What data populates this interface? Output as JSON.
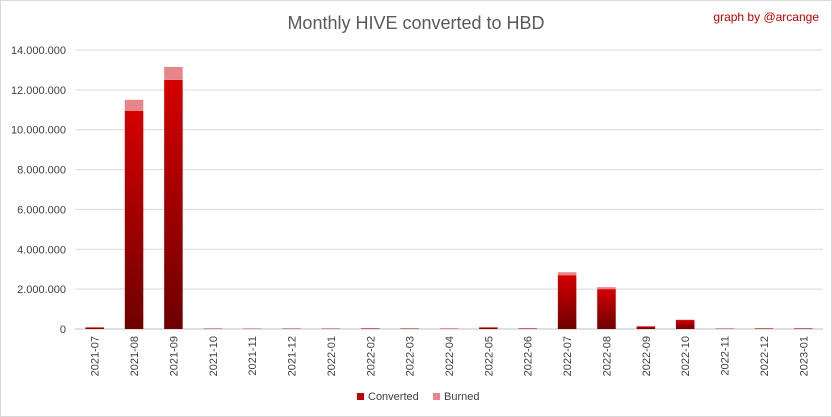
{
  "chart_data": {
    "type": "bar",
    "stacked": true,
    "title": "Monthly HIVE converted to HBD",
    "credit": "graph by @arcange",
    "xlabel": "",
    "ylabel": "",
    "ylim": [
      0,
      14000000
    ],
    "ytick_values": [
      0,
      2000000,
      4000000,
      6000000,
      8000000,
      10000000,
      12000000,
      14000000
    ],
    "ytick_labels": [
      "0",
      "2.000.000",
      "4.000.000",
      "6.000.000",
      "8.000.000",
      "10.000.000",
      "12.000.000",
      "14.000.000"
    ],
    "grid": true,
    "legend_position": "bottom",
    "categories": [
      "2021-07",
      "2021-08",
      "2021-09",
      "2021-10",
      "2021-11",
      "2021-12",
      "2022-01",
      "2022-02",
      "2022-03",
      "2022-04",
      "2022-05",
      "2022-06",
      "2022-07",
      "2022-08",
      "2022-09",
      "2022-10",
      "2022-11",
      "2022-12",
      "2023-01"
    ],
    "series": [
      {
        "name": "Converted",
        "color": "#c00000",
        "values": [
          80000,
          10950000,
          12500000,
          20000,
          15000,
          20000,
          20000,
          30000,
          25000,
          20000,
          80000,
          30000,
          2700000,
          2000000,
          130000,
          450000,
          20000,
          30000,
          30000
        ]
      },
      {
        "name": "Burned",
        "color": "#e8858a",
        "values": [
          2000,
          550000,
          650000,
          1000,
          1000,
          1000,
          1000,
          1000,
          1000,
          1000,
          3000,
          1000,
          150000,
          100000,
          7000,
          20000,
          1000,
          1000,
          1000
        ]
      }
    ]
  }
}
